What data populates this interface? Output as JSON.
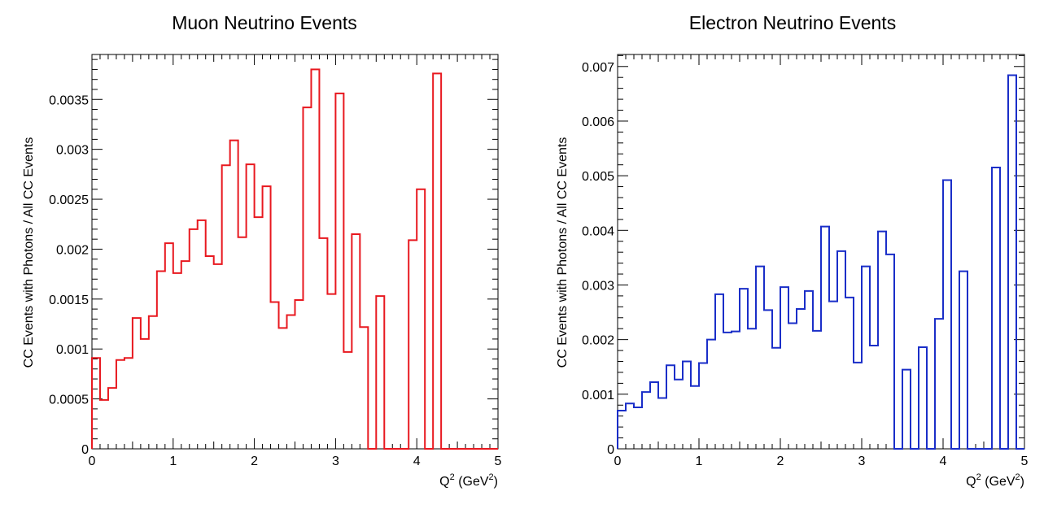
{
  "chart_data": [
    {
      "type": "histogram",
      "title": "Muon Neutrino Events",
      "xlabel": "Q",
      "xlabel_sup": "2",
      "xlabel_unit": " (GeV",
      "xlabel_unit_sup": "2",
      "xlabel_unit_close": ")",
      "ylabel": "CC Events with Photons / All CC Events",
      "xlim": [
        0,
        5
      ],
      "ylim": [
        0,
        0.00395
      ],
      "bin_width": 0.1,
      "line_color": "#e8181f",
      "x_ticks": [
        "0",
        "1",
        "2",
        "3",
        "4",
        "5"
      ],
      "y_ticks": [
        "0",
        "0.0005",
        "0.001",
        "0.0015",
        "0.002",
        "0.0025",
        "0.003",
        "0.0035"
      ],
      "values": [
        0.00091,
        0.00049,
        0.00061,
        0.00089,
        0.00091,
        0.00131,
        0.0011,
        0.00133,
        0.00178,
        0.00206,
        0.00176,
        0.00188,
        0.0022,
        0.00229,
        0.00193,
        0.00185,
        0.00284,
        0.00309,
        0.00212,
        0.00285,
        0.00232,
        0.00263,
        0.00147,
        0.00121,
        0.00134,
        0.00149,
        0.00342,
        0.0038,
        0.00211,
        0.00155,
        0.00356,
        0.00097,
        0.00215,
        0.00122,
        0,
        0.00153,
        0,
        0,
        0,
        0.00209,
        0.0026,
        0,
        0.00376,
        0,
        0,
        0,
        0,
        0,
        0,
        0
      ]
    },
    {
      "type": "histogram",
      "title": "Electron Neutrino Events",
      "xlabel": "Q",
      "xlabel_sup": "2",
      "xlabel_unit": " (GeV",
      "xlabel_unit_sup": "2",
      "xlabel_unit_close": ")",
      "ylabel": "CC Events with Photons / All CC Events",
      "xlim": [
        0,
        5
      ],
      "ylim": [
        0,
        0.00722
      ],
      "bin_width": 0.1,
      "line_color": "#1a2ec8",
      "x_ticks": [
        "0",
        "1",
        "2",
        "3",
        "4",
        "5"
      ],
      "y_ticks": [
        "0",
        "0.001",
        "0.002",
        "0.003",
        "0.004",
        "0.005",
        "0.006",
        "0.007"
      ],
      "values": [
        0.0007,
        0.00083,
        0.00076,
        0.00104,
        0.00122,
        0.00093,
        0.00153,
        0.00127,
        0.0016,
        0.00115,
        0.00157,
        0.002,
        0.00283,
        0.00213,
        0.00215,
        0.00293,
        0.0022,
        0.00334,
        0.00254,
        0.00185,
        0.00296,
        0.0023,
        0.00256,
        0.00289,
        0.00216,
        0.00407,
        0.0027,
        0.00362,
        0.00277,
        0.00158,
        0.00334,
        0.00189,
        0.00398,
        0.00356,
        0,
        0.00145,
        0,
        0.00186,
        0,
        0.00238,
        0.00492,
        0,
        0.00325,
        0,
        0,
        0,
        0.00515,
        0,
        0.00684,
        0
      ]
    }
  ]
}
